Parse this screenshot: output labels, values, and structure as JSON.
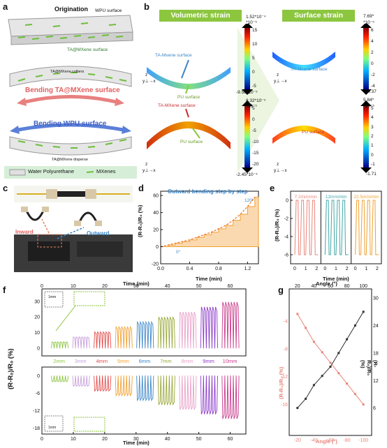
{
  "panel_a": {
    "letter": "a",
    "origination": "Origination",
    "wpu_surface": "WPU surface",
    "ta_mxene_surface": "TA@MXene surface",
    "ta_mxene_colliers": "TA@MXene colliers",
    "bending_ta": "Bending TA@MXene surface",
    "bending_wpu": "Bending WPU surface",
    "ta_mxene_disperse": "TA@MXene disperse",
    "legend_wpu": "Water Polyurethane",
    "legend_mxene": "MXenes"
  },
  "panel_b": {
    "letter": "b",
    "volumetric": "Volumetric strain",
    "surface": "Surface strain",
    "top_vol": {
      "label1": "TA-Mxene surface",
      "label2": "PU surface",
      "max": "1.52*10⁻⁴",
      "max_unit": "*10⁻⁵",
      "min": "-9.58*10⁻⁵",
      "ticks": [
        "15",
        "10",
        "5",
        "0",
        "-5"
      ]
    },
    "bot_vol": {
      "label1": "TA-MXene surface",
      "label2": "PU surface",
      "max": "8.32*10⁻⁵",
      "max_unit": "*10⁻⁵",
      "min": "-2.45*10⁻⁴",
      "ticks": [
        "5",
        "0",
        "-5",
        "-10",
        "-15",
        "-20"
      ]
    },
    "top_surf": {
      "label1": "TA-Mxene surface",
      "max": "7.69*",
      "max_unit": "*10⁻⁵",
      "min": "-4.37",
      "ticks": [
        "6",
        "4",
        "2",
        "0",
        "-2",
        "-4"
      ]
    },
    "bot_surf": {
      "label1": "PU surface",
      "max": "5.84*",
      "max_unit": "*10⁻⁵",
      "min": "-1.71",
      "ticks": [
        "5",
        "4",
        "3",
        "2",
        "1",
        "0",
        "-1"
      ]
    },
    "axis_z": "z",
    "axis_yx": "y⊥→x"
  },
  "panel_c": {
    "letter": "c",
    "inward": "Inward",
    "outward": "Outward"
  },
  "panel_d": {
    "letter": "d",
    "annotation": "Outward bending step by step",
    "start_angle": "0°",
    "end_angle": "120°",
    "ylabel": "(R-R₀)/R₀ (%)",
    "xlabel": "Time (min)",
    "xticks": [
      "0.0",
      "0.4",
      "0.8",
      "1.2"
    ],
    "yticks": [
      "60",
      "40",
      "20",
      "0",
      "-20"
    ]
  },
  "panel_e": {
    "letter": "e",
    "ylabel": "(R-R₀)/R₀ (%)",
    "xlabel": "Time (min)",
    "speeds": [
      {
        "label": "7.2mm/min",
        "color": "#e8857a"
      },
      {
        "label": "12mm/min",
        "color": "#3fa6a6"
      },
      {
        "label": "22.5mm/min",
        "color": "#f0a030"
      }
    ],
    "xticks": [
      "0",
      "1",
      "2"
    ],
    "yticks": [
      "0",
      "-2",
      "-4",
      "-6"
    ]
  },
  "panel_f": {
    "letter": "f",
    "xlabel_top": "Time (min)",
    "xlabel_bottom": "Time (min)",
    "ylabel": "(R-R₀)/R₀ (%)",
    "xticks": [
      "0",
      "10",
      "20",
      "30",
      "40",
      "50",
      "60"
    ],
    "top_yticks": [
      "30",
      "20",
      "10",
      "0"
    ],
    "bottom_yticks": [
      "0",
      "-6",
      "-12",
      "-18"
    ],
    "inset_top": "1mm",
    "inset_bottom": "1mm",
    "groups": [
      {
        "label": "2mm",
        "color": "#8cc63f"
      },
      {
        "label": "3mm",
        "color": "#c9a0dc"
      },
      {
        "label": "4mm",
        "color": "#e24b4b"
      },
      {
        "label": "5mm",
        "color": "#f0a030"
      },
      {
        "label": "6mm",
        "color": "#3a86c8"
      },
      {
        "label": "7mm",
        "color": "#9aa83a"
      },
      {
        "label": "8mm",
        "color": "#e8a0c8"
      },
      {
        "label": "9mm",
        "color": "#8a3ac8"
      },
      {
        "label": "10mm",
        "color": "#c83a8a"
      }
    ]
  },
  "panel_g": {
    "letter": "g",
    "xlabel_top": "Angle (°)",
    "xlabel_bottom": "Angle (°)",
    "ylabel_left": "(R-R₀)/R₀ (%)",
    "ylabel_right": "(R-R₀)/R₀ (%)",
    "top_xticks": [
      "20",
      "40",
      "60",
      "80",
      "100"
    ],
    "bottom_xticks": [
      "-20",
      "-40",
      "-60",
      "-80",
      "-100"
    ],
    "left_yticks": [
      "-4",
      "-8",
      "-12",
      "-16"
    ],
    "right_yticks": [
      "30",
      "24",
      "18",
      "12",
      "6"
    ]
  },
  "chart_data": [
    {
      "type": "line",
      "panel": "d",
      "x": [
        0.0,
        0.1,
        0.2,
        0.3,
        0.4,
        0.5,
        0.6,
        0.7,
        0.8,
        0.9,
        1.0,
        1.1,
        1.2,
        1.3
      ],
      "values": [
        0,
        2,
        4,
        6,
        8,
        11,
        14,
        17,
        21,
        25,
        31,
        38,
        47,
        58
      ],
      "xlim": [
        0,
        1.35
      ],
      "ylim": [
        -20,
        65
      ]
    },
    {
      "type": "scatter",
      "panel": "g",
      "series": [
        {
          "x": [
            -20,
            -30,
            -40,
            -50,
            -60,
            -70,
            -80,
            -90,
            -100
          ],
          "values": [
            -3,
            -5,
            -7,
            -8.5,
            -10,
            -11.5,
            -13,
            -14.5,
            -16
          ],
          "color": "#e8857a"
        },
        {
          "x": [
            20,
            30,
            40,
            50,
            60,
            70,
            80,
            90,
            100
          ],
          "values": [
            6,
            8,
            11,
            13,
            15,
            18,
            21,
            24,
            27
          ],
          "color": "#333333"
        }
      ]
    }
  ],
  "colors": {
    "green": "#8cc63f",
    "orange": "#f0a030",
    "pink": "#e8857a",
    "teal": "#3fa6a6",
    "blue": "#3a86c8"
  }
}
